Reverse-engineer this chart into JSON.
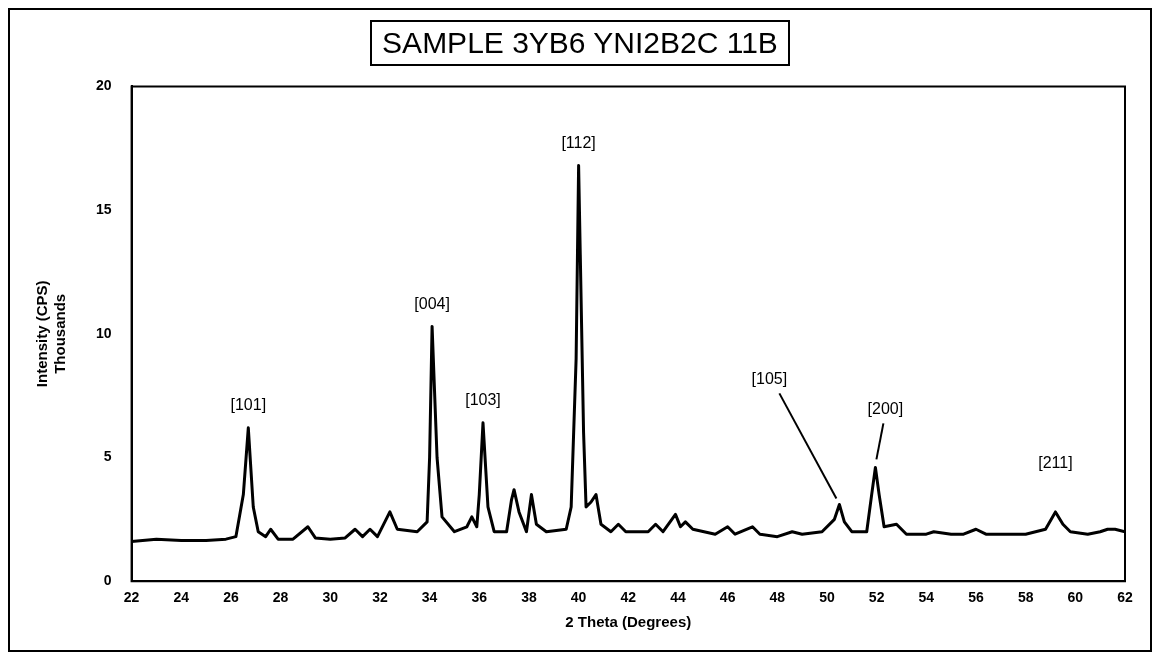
{
  "chart_data": {
    "type": "line",
    "title": "SAMPLE 3YB6 YNI2B2C 11B",
    "xlabel": "2 Theta (Degrees)",
    "ylabel": "Intensity (CPS)\nThousands",
    "xlim": [
      22,
      62
    ],
    "xticks": [
      22,
      24,
      26,
      28,
      30,
      32,
      34,
      36,
      38,
      40,
      42,
      44,
      46,
      48,
      50,
      52,
      54,
      56,
      58,
      60,
      62
    ],
    "ylim": [
      0,
      20
    ],
    "yticks": [
      0,
      5,
      10,
      15,
      20
    ],
    "marker": "none",
    "legend": false,
    "series": [
      {
        "color": "#000000",
        "x": [
          22,
          23,
          24,
          25,
          25.8,
          26.2,
          26.5,
          26.7,
          26.9,
          27.1,
          27.4,
          27.6,
          27.9,
          28.5,
          29.1,
          29.4,
          30,
          30.6,
          31,
          31.3,
          31.6,
          31.9,
          32.4,
          32.7,
          33.5,
          33.9,
          34.0,
          34.1,
          34.3,
          34.5,
          35,
          35.5,
          35.7,
          35.9,
          36.0,
          36.15,
          36.35,
          36.6,
          37.1,
          37.3,
          37.4,
          37.6,
          37.9,
          38.1,
          38.3,
          38.7,
          39.5,
          39.7,
          39.9,
          40.0,
          40.2,
          40.3,
          40.5,
          40.7,
          40.9,
          41.3,
          41.6,
          41.9,
          42.8,
          43.1,
          43.4,
          43.9,
          44.1,
          44.3,
          44.6,
          45.5,
          46.0,
          46.3,
          47.0,
          47.3,
          48,
          48.6,
          49,
          49.8,
          50.3,
          50.5,
          50.7,
          51,
          51.6,
          51.8,
          51.95,
          52.1,
          52.3,
          52.8,
          53.2,
          54,
          54.3,
          55,
          55.5,
          56,
          56.4,
          57,
          58,
          58.8,
          59.2,
          59.5,
          59.8,
          60.5,
          61,
          61.3,
          61.6,
          62
        ],
        "values": [
          1.6,
          1.7,
          1.65,
          1.65,
          1.7,
          1.8,
          3.5,
          6.2,
          3.0,
          2.0,
          1.8,
          2.1,
          1.7,
          1.7,
          2.2,
          1.75,
          1.7,
          1.75,
          2.1,
          1.8,
          2.1,
          1.8,
          2.8,
          2.1,
          2.0,
          2.4,
          5,
          10.3,
          5,
          2.6,
          2.0,
          2.2,
          2.6,
          2.2,
          3.5,
          6.4,
          3.0,
          2.0,
          2.0,
          3.3,
          3.7,
          2.8,
          2.0,
          3.5,
          2.3,
          2.0,
          2.1,
          3.0,
          9,
          16.8,
          6,
          3.0,
          3.2,
          3.5,
          2.3,
          2.0,
          2.3,
          2.0,
          2.0,
          2.3,
          2.0,
          2.7,
          2.2,
          2.4,
          2.1,
          1.9,
          2.2,
          1.9,
          2.2,
          1.9,
          1.8,
          2.0,
          1.9,
          2.0,
          2.5,
          3.1,
          2.4,
          2.0,
          2.0,
          3.5,
          4.6,
          3.5,
          2.2,
          2.3,
          1.9,
          1.9,
          2.0,
          1.9,
          1.9,
          2.1,
          1.9,
          1.9,
          1.9,
          2.1,
          2.8,
          2.3,
          2.0,
          1.9,
          2.0,
          2.1,
          2.1,
          2.0
        ]
      }
    ],
    "annotations": [
      {
        "text": "[101]",
        "x": 26.7,
        "y": 6.2
      },
      {
        "text": "[004]",
        "x": 34.1,
        "y": 10.3
      },
      {
        "text": "[103]",
        "x": 36.15,
        "y": 6.4
      },
      {
        "text": "[112]",
        "x": 40.0,
        "y": 16.8
      },
      {
        "text": "[105]",
        "x": 50.5,
        "y": 3.1
      },
      {
        "text": "[200]",
        "x": 51.95,
        "y": 4.6
      },
      {
        "text": "[211]",
        "x": 59.2,
        "y": 2.8
      }
    ]
  }
}
